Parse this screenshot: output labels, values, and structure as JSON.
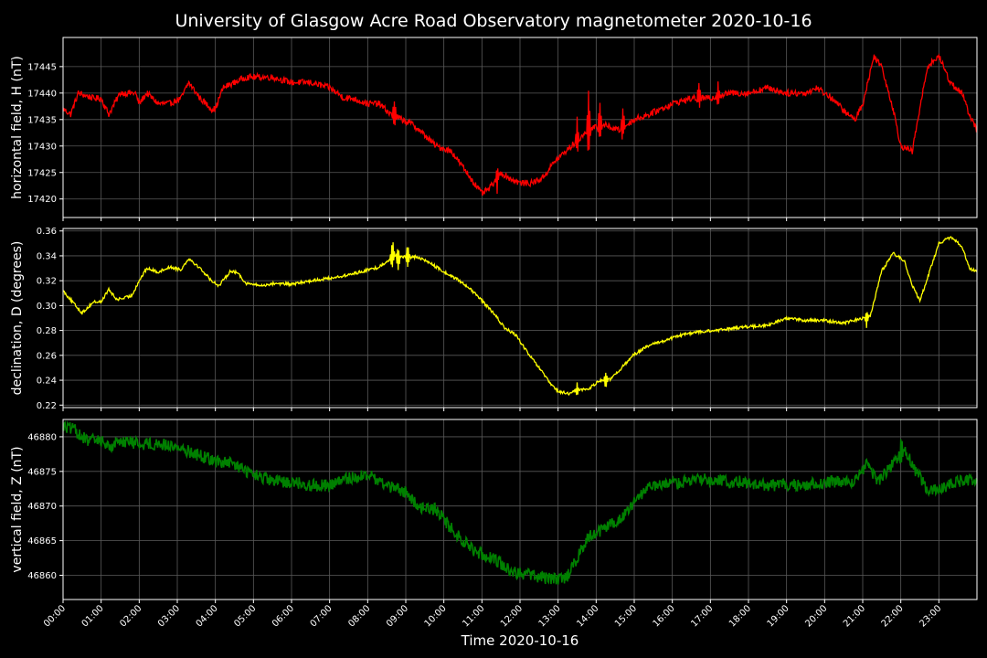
{
  "chart_data": {
    "type": "line",
    "title": "University of Glasgow Acre Road Observatory magnetometer 2020-10-16",
    "xlabel": "Time 2020-10-16",
    "x_ticks": [
      "00:00",
      "01:00",
      "02:00",
      "03:00",
      "04:00",
      "05:00",
      "06:00",
      "07:00",
      "08:00",
      "09:00",
      "10:00",
      "11:00",
      "12:00",
      "13:00",
      "14:00",
      "15:00",
      "16:00",
      "17:00",
      "18:00",
      "19:00",
      "20:00",
      "21:00",
      "22:00",
      "23:00"
    ],
    "x_range_hours": [
      0,
      24
    ],
    "grid": true,
    "panels": [
      {
        "name": "H",
        "ylabel": "horizontal field, H (nT)",
        "color": "#ff0000",
        "ylim": [
          17416.5,
          17450.5
        ],
        "yticks": [
          17420,
          17425,
          17430,
          17435,
          17440,
          17445
        ],
        "ytick_decimals": 0,
        "noise": 0.6,
        "points": [
          [
            0,
            17437
          ],
          [
            0.2,
            17436
          ],
          [
            0.4,
            17440
          ],
          [
            0.8,
            17439
          ],
          [
            1.0,
            17439
          ],
          [
            1.2,
            17436
          ],
          [
            1.5,
            17440
          ],
          [
            1.9,
            17440
          ],
          [
            2.0,
            17438
          ],
          [
            2.2,
            17440
          ],
          [
            2.5,
            17438
          ],
          [
            2.8,
            17438
          ],
          [
            3.1,
            17439
          ],
          [
            3.3,
            17442
          ],
          [
            3.6,
            17439
          ],
          [
            3.9,
            17437
          ],
          [
            4.0,
            17437
          ],
          [
            4.2,
            17441
          ],
          [
            4.5,
            17442
          ],
          [
            4.8,
            17443
          ],
          [
            5.0,
            17443
          ],
          [
            5.5,
            17443
          ],
          [
            6.0,
            17442
          ],
          [
            6.5,
            17442
          ],
          [
            7.0,
            17441
          ],
          [
            7.4,
            17439
          ],
          [
            7.6,
            17439
          ],
          [
            8.0,
            17438
          ],
          [
            8.3,
            17438
          ],
          [
            8.6,
            17436
          ],
          [
            8.9,
            17435
          ],
          [
            9.2,
            17434
          ],
          [
            9.5,
            17432
          ],
          [
            9.8,
            17430
          ],
          [
            10.2,
            17429
          ],
          [
            10.5,
            17426
          ],
          [
            10.8,
            17423
          ],
          [
            11.0,
            17421
          ],
          [
            11.2,
            17422
          ],
          [
            11.5,
            17425
          ],
          [
            11.7,
            17424
          ],
          [
            12.0,
            17423
          ],
          [
            12.3,
            17423
          ],
          [
            12.6,
            17424
          ],
          [
            12.9,
            17427
          ],
          [
            13.2,
            17429
          ],
          [
            13.5,
            17431
          ],
          [
            13.8,
            17433
          ],
          [
            14.2,
            17434
          ],
          [
            14.6,
            17433
          ],
          [
            15.0,
            17435
          ],
          [
            15.4,
            17436
          ],
          [
            16.0,
            17438
          ],
          [
            16.5,
            17439
          ],
          [
            17.0,
            17439
          ],
          [
            17.5,
            17440
          ],
          [
            18.0,
            17440
          ],
          [
            18.5,
            17441
          ],
          [
            19.0,
            17440
          ],
          [
            19.5,
            17440
          ],
          [
            19.8,
            17441
          ],
          [
            20.2,
            17439
          ],
          [
            20.6,
            17436
          ],
          [
            20.8,
            17435
          ],
          [
            21.0,
            17438
          ],
          [
            21.3,
            17447
          ],
          [
            21.5,
            17445
          ],
          [
            21.8,
            17437
          ],
          [
            22.0,
            17430
          ],
          [
            22.3,
            17429
          ],
          [
            22.5,
            17437
          ],
          [
            22.7,
            17445
          ],
          [
            23.0,
            17447
          ],
          [
            23.3,
            17442
          ],
          [
            23.6,
            17440
          ],
          [
            23.8,
            17436
          ],
          [
            24.0,
            17433
          ]
        ],
        "spikes": [
          {
            "x": 8.7,
            "amp": 3
          },
          {
            "x": 11.4,
            "amp": -2.5
          },
          {
            "x": 13.5,
            "amp": 4
          },
          {
            "x": 13.8,
            "amp": 8
          },
          {
            "x": 14.1,
            "amp": 5
          },
          {
            "x": 14.7,
            "amp": 4
          },
          {
            "x": 16.7,
            "amp": 3
          },
          {
            "x": 17.2,
            "amp": 3
          }
        ]
      },
      {
        "name": "D",
        "ylabel": "declination, D (degrees)",
        "color": "#ffff00",
        "ylim": [
          0.218,
          0.362
        ],
        "yticks": [
          0.22,
          0.24,
          0.26,
          0.28,
          0.3,
          0.32,
          0.34,
          0.36
        ],
        "ytick_decimals": 2,
        "noise": 0.0012,
        "points": [
          [
            0,
            0.312
          ],
          [
            0.3,
            0.301
          ],
          [
            0.5,
            0.294
          ],
          [
            0.8,
            0.303
          ],
          [
            1.0,
            0.303
          ],
          [
            1.2,
            0.313
          ],
          [
            1.4,
            0.305
          ],
          [
            1.6,
            0.306
          ],
          [
            1.8,
            0.308
          ],
          [
            2.0,
            0.32
          ],
          [
            2.2,
            0.33
          ],
          [
            2.5,
            0.327
          ],
          [
            2.8,
            0.331
          ],
          [
            3.1,
            0.329
          ],
          [
            3.3,
            0.338
          ],
          [
            3.6,
            0.33
          ],
          [
            3.9,
            0.32
          ],
          [
            4.1,
            0.316
          ],
          [
            4.4,
            0.328
          ],
          [
            4.6,
            0.326
          ],
          [
            4.8,
            0.318
          ],
          [
            5.2,
            0.316
          ],
          [
            5.6,
            0.318
          ],
          [
            6.0,
            0.317
          ],
          [
            6.5,
            0.32
          ],
          [
            7.0,
            0.322
          ],
          [
            7.4,
            0.324
          ],
          [
            7.8,
            0.327
          ],
          [
            8.3,
            0.331
          ],
          [
            8.7,
            0.34
          ],
          [
            9.0,
            0.339
          ],
          [
            9.3,
            0.339
          ],
          [
            9.6,
            0.335
          ],
          [
            10.0,
            0.327
          ],
          [
            10.3,
            0.322
          ],
          [
            10.6,
            0.316
          ],
          [
            11.0,
            0.304
          ],
          [
            11.3,
            0.294
          ],
          [
            11.6,
            0.282
          ],
          [
            11.9,
            0.276
          ],
          [
            12.2,
            0.262
          ],
          [
            12.5,
            0.25
          ],
          [
            12.8,
            0.237
          ],
          [
            13.0,
            0.231
          ],
          [
            13.3,
            0.229
          ],
          [
            13.5,
            0.232
          ],
          [
            13.8,
            0.233
          ],
          [
            14.1,
            0.24
          ],
          [
            14.4,
            0.241
          ],
          [
            14.7,
            0.251
          ],
          [
            15.0,
            0.261
          ],
          [
            15.4,
            0.268
          ],
          [
            15.8,
            0.272
          ],
          [
            16.2,
            0.276
          ],
          [
            16.7,
            0.279
          ],
          [
            17.2,
            0.28
          ],
          [
            17.6,
            0.282
          ],
          [
            18.0,
            0.283
          ],
          [
            18.5,
            0.284
          ],
          [
            19.0,
            0.29
          ],
          [
            19.5,
            0.288
          ],
          [
            20.0,
            0.288
          ],
          [
            20.5,
            0.286
          ],
          [
            21.0,
            0.29
          ],
          [
            21.2,
            0.292
          ],
          [
            21.5,
            0.328
          ],
          [
            21.8,
            0.342
          ],
          [
            22.1,
            0.336
          ],
          [
            22.3,
            0.316
          ],
          [
            22.5,
            0.304
          ],
          [
            22.7,
            0.322
          ],
          [
            23.0,
            0.35
          ],
          [
            23.3,
            0.355
          ],
          [
            23.6,
            0.348
          ],
          [
            23.8,
            0.33
          ],
          [
            24.0,
            0.327
          ]
        ],
        "spikes": [
          {
            "x": 8.65,
            "amp": 0.015
          },
          {
            "x": 8.8,
            "amp": -0.012
          },
          {
            "x": 9.05,
            "amp": 0.012
          },
          {
            "x": 13.5,
            "amp": 0.006
          },
          {
            "x": 14.25,
            "amp": -0.008
          },
          {
            "x": 21.1,
            "amp": -0.009
          }
        ]
      },
      {
        "name": "Z",
        "ylabel": "vertical field, Z (nT)",
        "color": "#008000",
        "ylim": [
          46856.5,
          46882.5
        ],
        "yticks": [
          46860,
          46865,
          46870,
          46875,
          46880
        ],
        "ytick_decimals": 0,
        "noise": 0.9,
        "points": [
          [
            0,
            46881.5
          ],
          [
            0.3,
            46881
          ],
          [
            0.6,
            46879.5
          ],
          [
            1.0,
            46879.5
          ],
          [
            1.2,
            46878.5
          ],
          [
            1.5,
            46879.5
          ],
          [
            2.0,
            46879
          ],
          [
            2.5,
            46879
          ],
          [
            3.0,
            46878.5
          ],
          [
            3.5,
            46877.5
          ],
          [
            4.0,
            46876.5
          ],
          [
            4.5,
            46876
          ],
          [
            5.0,
            46874.5
          ],
          [
            5.5,
            46873.5
          ],
          [
            6.0,
            46873.5
          ],
          [
            6.5,
            46873
          ],
          [
            7.0,
            46873
          ],
          [
            7.5,
            46874
          ],
          [
            8.0,
            46874.5
          ],
          [
            8.5,
            46873
          ],
          [
            9.0,
            46872
          ],
          [
            9.3,
            46870
          ],
          [
            9.8,
            46869.5
          ],
          [
            10.3,
            46866
          ],
          [
            10.8,
            46863.5
          ],
          [
            11.3,
            46862.5
          ],
          [
            11.8,
            46860.5
          ],
          [
            12.3,
            46860
          ],
          [
            12.8,
            46859.5
          ],
          [
            13.2,
            46859.5
          ],
          [
            13.5,
            46862.5
          ],
          [
            13.8,
            46865.5
          ],
          [
            14.3,
            46867
          ],
          [
            14.8,
            46869
          ],
          [
            15.3,
            46872.5
          ],
          [
            15.8,
            46873
          ],
          [
            16.3,
            46873.5
          ],
          [
            16.8,
            46874
          ],
          [
            17.3,
            46873.5
          ],
          [
            17.8,
            46873.5
          ],
          [
            18.3,
            46873
          ],
          [
            19.0,
            46873
          ],
          [
            19.5,
            46873
          ],
          [
            20.0,
            46873.5
          ],
          [
            20.5,
            46873.5
          ],
          [
            20.8,
            46873.5
          ],
          [
            21.1,
            46876
          ],
          [
            21.4,
            46873.5
          ],
          [
            21.8,
            46876
          ],
          [
            22.1,
            46878.5
          ],
          [
            22.4,
            46875
          ],
          [
            22.7,
            46872.5
          ],
          [
            23.0,
            46872.5
          ],
          [
            23.5,
            46873.5
          ],
          [
            24.0,
            46874
          ]
        ],
        "spikes": [
          {
            "x": 22.0,
            "amp": 2
          }
        ]
      }
    ]
  }
}
